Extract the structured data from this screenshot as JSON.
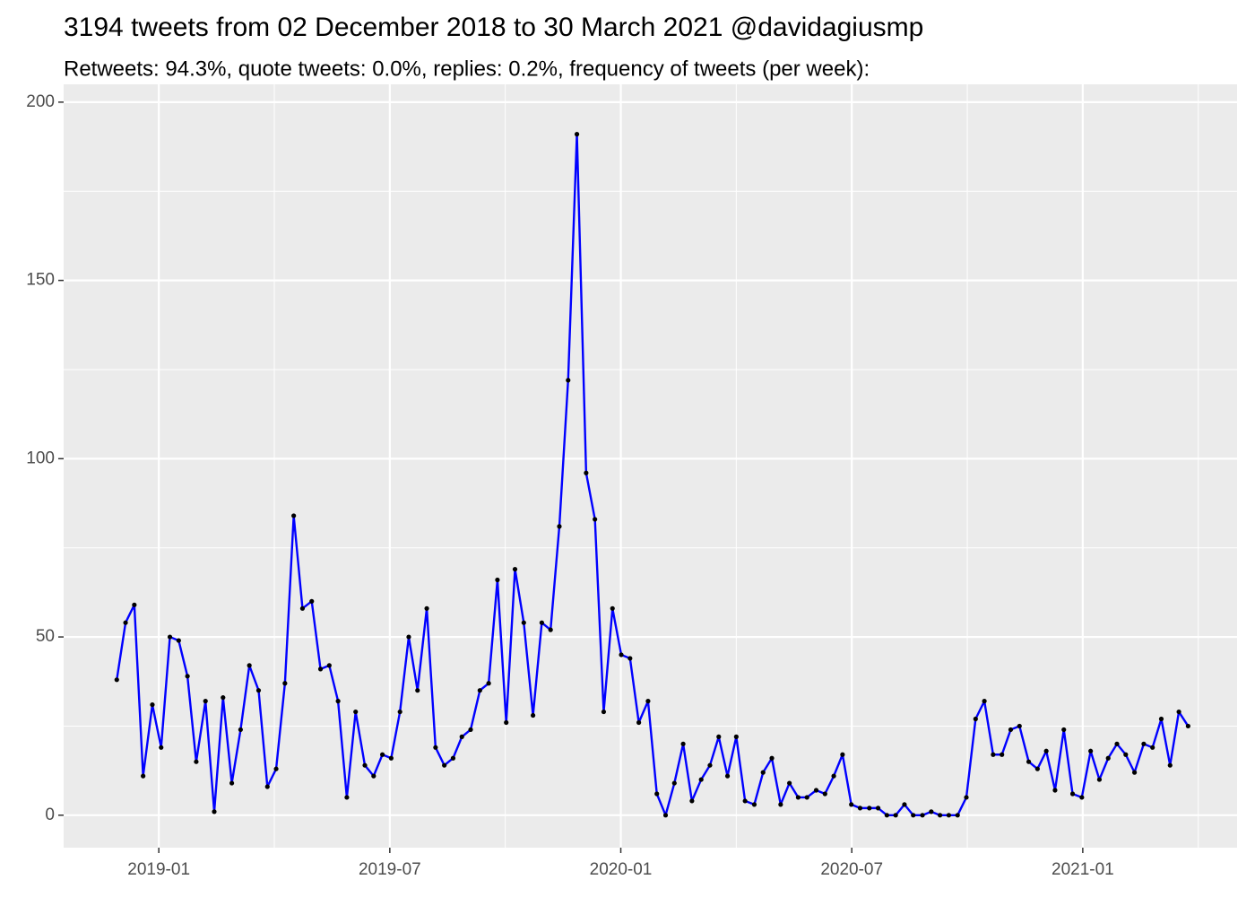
{
  "chart_data": {
    "type": "line",
    "title": "3194 tweets from 02 December 2018 to 30 March 2021 @davidagiusmp",
    "subtitle": "Retweets: 94.3%, quote tweets: 0.0%, replies: 0.2%, frequency of tweets (per week):",
    "x": [
      2018.909,
      2018.928,
      2018.947,
      2018.966,
      2018.986,
      2019.005,
      2019.024,
      2019.043,
      2019.062,
      2019.081,
      2019.101,
      2019.12,
      2019.139,
      2019.158,
      2019.177,
      2019.196,
      2019.216,
      2019.235,
      2019.254,
      2019.273,
      2019.292,
      2019.311,
      2019.331,
      2019.35,
      2019.369,
      2019.388,
      2019.407,
      2019.426,
      2019.446,
      2019.465,
      2019.484,
      2019.503,
      2019.522,
      2019.541,
      2019.56,
      2019.58,
      2019.599,
      2019.618,
      2019.637,
      2019.656,
      2019.675,
      2019.695,
      2019.714,
      2019.733,
      2019.752,
      2019.771,
      2019.79,
      2019.81,
      2019.829,
      2019.848,
      2019.867,
      2019.886,
      2019.905,
      2019.925,
      2019.944,
      2019.963,
      2019.982,
      2020.001,
      2020.02,
      2020.039,
      2020.059,
      2020.078,
      2020.097,
      2020.116,
      2020.135,
      2020.154,
      2020.174,
      2020.193,
      2020.212,
      2020.231,
      2020.25,
      2020.269,
      2020.289,
      2020.308,
      2020.327,
      2020.346,
      2020.365,
      2020.384,
      2020.403,
      2020.423,
      2020.442,
      2020.461,
      2020.48,
      2020.499,
      2020.518,
      2020.538,
      2020.557,
      2020.576,
      2020.595,
      2020.614,
      2020.633,
      2020.653,
      2020.672,
      2020.691,
      2020.71,
      2020.729,
      2020.748,
      2020.768,
      2020.787,
      2020.806,
      2020.825,
      2020.844,
      2020.863,
      2020.883,
      2020.902,
      2020.921,
      2020.94,
      2020.959,
      2020.978,
      2020.998,
      2021.017,
      2021.036,
      2021.055,
      2021.074,
      2021.093,
      2021.112,
      2021.132,
      2021.151,
      2021.17,
      2021.189,
      2021.208,
      2021.228
    ],
    "values": [
      38,
      54,
      59,
      11,
      31,
      19,
      50,
      49,
      39,
      15,
      32,
      1,
      33,
      9,
      24,
      42,
      35,
      8,
      13,
      37,
      84,
      58,
      60,
      41,
      42,
      32,
      5,
      29,
      14,
      11,
      17,
      16,
      29,
      50,
      35,
      58,
      19,
      14,
      16,
      22,
      24,
      35,
      37,
      66,
      26,
      69,
      54,
      28,
      54,
      52,
      81,
      122,
      191,
      96,
      83,
      29,
      58,
      45,
      44,
      26,
      32,
      6,
      0,
      9,
      20,
      4,
      10,
      14,
      22,
      11,
      22,
      4,
      3,
      12,
      16,
      3,
      9,
      5,
      5,
      7,
      6,
      11,
      17,
      3,
      2,
      2,
      2,
      0,
      0,
      3,
      0,
      0,
      1,
      0,
      0,
      0,
      5,
      27,
      32,
      17,
      17,
      24,
      25,
      15,
      13,
      18,
      7,
      24,
      6,
      5,
      18,
      10,
      16,
      20,
      17,
      12,
      20,
      19,
      27,
      14,
      29,
      25
    ],
    "color": "#0000ff",
    "point_color": "#000000",
    "xlim": [
      2018.794,
      2021.334
    ],
    "xticks": [
      {
        "value": 2019,
        "label": "2019-01"
      },
      {
        "value": 2019.5,
        "label": "2019-07"
      },
      {
        "value": 2020,
        "label": "2020-01"
      },
      {
        "value": 2020.5,
        "label": "2020-07"
      },
      {
        "value": 2021,
        "label": "2021-01"
      }
    ],
    "ylim": [
      -9.1,
      205
    ],
    "yticks": [
      0,
      50,
      100,
      150,
      200
    ],
    "grid": true
  }
}
